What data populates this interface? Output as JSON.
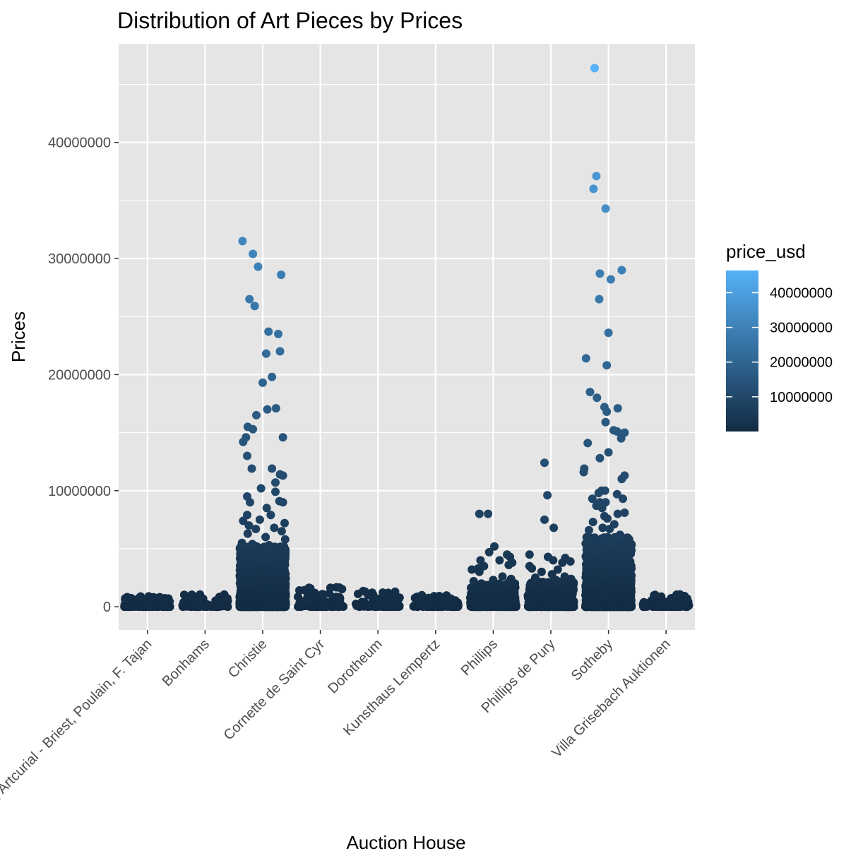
{
  "chart_data": {
    "type": "scatter",
    "title": "Distribution of Art Pieces by Prices",
    "xlabel": "Auction House",
    "ylabel": "Prices",
    "categories": [
      "Binoche et Giquello, Artcurial - Briest, Poulain, F. Tajan",
      "Bonhams",
      "Christie",
      "Cornette de Saint Cyr",
      "Dorotheum",
      "Kunsthaus Lempertz",
      "Phillips",
      "Phillips de Pury",
      "Sotheby",
      "Villa Grisebach Auktionen"
    ],
    "ylim": [
      -2000000,
      48500000
    ],
    "yticks": [
      0,
      10000000,
      20000000,
      30000000,
      40000000
    ],
    "ytick_labels": [
      "0",
      "10000000",
      "20000000",
      "30000000",
      "40000000"
    ],
    "grid": true,
    "jitter": true,
    "color_variable": "price_usd",
    "color_range": [
      0,
      46400000
    ],
    "color_low": "#132b43",
    "color_high": "#56b1f7",
    "panel_color": "#e5e5e5",
    "grid_color": "#ffffff",
    "legend": {
      "title": "price_usd",
      "position": "right",
      "ticks": [
        10000000,
        20000000,
        30000000,
        40000000
      ],
      "tick_labels": [
        "10000000",
        "20000000",
        "30000000",
        "40000000"
      ]
    },
    "points": [
      {
        "category": "Christie",
        "dx": -0.35,
        "y": 31500000
      },
      {
        "category": "Christie",
        "dx": -0.17,
        "y": 30400000
      },
      {
        "category": "Christie",
        "dx": -0.08,
        "y": 29300000
      },
      {
        "category": "Christie",
        "dx": 0.32,
        "y": 28600000
      },
      {
        "category": "Christie",
        "dx": -0.23,
        "y": 26500000
      },
      {
        "category": "Christie",
        "dx": -0.14,
        "y": 25900000
      },
      {
        "category": "Christie",
        "dx": 0.1,
        "y": 23700000
      },
      {
        "category": "Christie",
        "dx": 0.27,
        "y": 23500000
      },
      {
        "category": "Christie",
        "dx": 0.06,
        "y": 21800000
      },
      {
        "category": "Christie",
        "dx": 0.3,
        "y": 22000000
      },
      {
        "category": "Christie",
        "dx": 0.16,
        "y": 19800000
      },
      {
        "category": "Christie",
        "dx": 0.0,
        "y": 19300000
      },
      {
        "category": "Christie",
        "dx": 0.08,
        "y": 17000000
      },
      {
        "category": "Christie",
        "dx": 0.23,
        "y": 17100000
      },
      {
        "category": "Christie",
        "dx": -0.11,
        "y": 16500000
      },
      {
        "category": "Christie",
        "dx": -0.26,
        "y": 15500000
      },
      {
        "category": "Christie",
        "dx": -0.17,
        "y": 15300000
      },
      {
        "category": "Christie",
        "dx": -0.29,
        "y": 14600000
      },
      {
        "category": "Christie",
        "dx": -0.34,
        "y": 14200000
      },
      {
        "category": "Christie",
        "dx": 0.35,
        "y": 14600000
      },
      {
        "category": "Christie",
        "dx": -0.27,
        "y": 13000000
      },
      {
        "category": "Christie",
        "dx": -0.19,
        "y": 11900000
      },
      {
        "category": "Christie",
        "dx": 0.16,
        "y": 11900000
      },
      {
        "category": "Christie",
        "dx": 0.3,
        "y": 11400000
      },
      {
        "category": "Christie",
        "dx": 0.35,
        "y": 11300000
      },
      {
        "category": "Christie",
        "dx": 0.22,
        "y": 10700000
      },
      {
        "category": "Christie",
        "dx": -0.03,
        "y": 10200000
      },
      {
        "category": "Christie",
        "dx": 0.22,
        "y": 9900000
      },
      {
        "category": "Christie",
        "dx": -0.27,
        "y": 9500000
      },
      {
        "category": "Christie",
        "dx": -0.22,
        "y": 9000000
      },
      {
        "category": "Christie",
        "dx": 0.29,
        "y": 9100000
      },
      {
        "category": "Christie",
        "dx": 0.35,
        "y": 9000000
      },
      {
        "category": "Christie",
        "dx": 0.07,
        "y": 8500000
      },
      {
        "category": "Christie",
        "dx": -0.27,
        "y": 7900000
      },
      {
        "category": "Christie",
        "dx": 0.14,
        "y": 7900000
      },
      {
        "category": "Christie",
        "dx": -0.34,
        "y": 7400000
      },
      {
        "category": "Christie",
        "dx": -0.05,
        "y": 7500000
      },
      {
        "category": "Christie",
        "dx": 0.38,
        "y": 7200000
      },
      {
        "category": "Christie",
        "dx": -0.24,
        "y": 7000000
      },
      {
        "category": "Christie",
        "dx": -0.12,
        "y": 6700000
      },
      {
        "category": "Christie",
        "dx": 0.2,
        "y": 6800000
      },
      {
        "category": "Christie",
        "dx": 0.33,
        "y": 6500000
      },
      {
        "category": "Christie",
        "dx": -0.26,
        "y": 6300000
      },
      {
        "category": "Christie",
        "dx": 0.05,
        "y": 6000000
      },
      {
        "category": "Christie",
        "dx": 0.39,
        "y": 5800000
      },
      {
        "category": "Christie",
        "dx": -0.36,
        "y": 5500000
      },
      {
        "category": "Christie",
        "dx": -0.18,
        "y": 5400000
      },
      {
        "category": "Christie",
        "dx": 0.11,
        "y": 5300000
      },
      {
        "category": "Phillips",
        "dx": -0.24,
        "y": 8000000
      },
      {
        "category": "Phillips",
        "dx": -0.09,
        "y": 8000000
      },
      {
        "category": "Phillips",
        "dx": 0.02,
        "y": 5200000
      },
      {
        "category": "Phillips",
        "dx": -0.07,
        "y": 4700000
      },
      {
        "category": "Phillips",
        "dx": 0.24,
        "y": 4500000
      },
      {
        "category": "Phillips",
        "dx": 0.29,
        "y": 4300000
      },
      {
        "category": "Phillips",
        "dx": -0.22,
        "y": 4000000
      },
      {
        "category": "Phillips",
        "dx": 0.11,
        "y": 4000000
      },
      {
        "category": "Phillips",
        "dx": 0.33,
        "y": 3800000
      },
      {
        "category": "Phillips",
        "dx": 0.27,
        "y": 3600000
      },
      {
        "category": "Phillips",
        "dx": -0.16,
        "y": 3500000
      },
      {
        "category": "Phillips",
        "dx": -0.26,
        "y": 3300000
      },
      {
        "category": "Phillips",
        "dx": -0.37,
        "y": 3200000
      },
      {
        "category": "Phillips",
        "dx": -0.24,
        "y": 3000000
      },
      {
        "category": "Phillips",
        "dx": 0.16,
        "y": 2600000
      },
      {
        "category": "Phillips",
        "dx": 0.31,
        "y": 2400000
      },
      {
        "category": "Phillips",
        "dx": 0.0,
        "y": 2300000
      },
      {
        "category": "Phillips",
        "dx": -0.34,
        "y": 2200000
      },
      {
        "category": "Phillips",
        "dx": 0.27,
        "y": 2100000
      },
      {
        "category": "Phillips de Pury",
        "dx": -0.11,
        "y": 12400000
      },
      {
        "category": "Phillips de Pury",
        "dx": -0.06,
        "y": 9600000
      },
      {
        "category": "Phillips de Pury",
        "dx": -0.11,
        "y": 7500000
      },
      {
        "category": "Phillips de Pury",
        "dx": 0.05,
        "y": 6800000
      },
      {
        "category": "Phillips de Pury",
        "dx": -0.37,
        "y": 4500000
      },
      {
        "category": "Phillips de Pury",
        "dx": -0.05,
        "y": 4300000
      },
      {
        "category": "Phillips de Pury",
        "dx": 0.25,
        "y": 4200000
      },
      {
        "category": "Phillips de Pury",
        "dx": 0.04,
        "y": 4000000
      },
      {
        "category": "Phillips de Pury",
        "dx": 0.34,
        "y": 3900000
      },
      {
        "category": "Phillips de Pury",
        "dx": 0.2,
        "y": 3800000
      },
      {
        "category": "Phillips de Pury",
        "dx": -0.37,
        "y": 3500000
      },
      {
        "category": "Phillips de Pury",
        "dx": -0.33,
        "y": 3300000
      },
      {
        "category": "Phillips de Pury",
        "dx": 0.12,
        "y": 3200000
      },
      {
        "category": "Phillips de Pury",
        "dx": -0.16,
        "y": 3000000
      },
      {
        "category": "Phillips de Pury",
        "dx": 0.02,
        "y": 2800000
      },
      {
        "category": "Phillips de Pury",
        "dx": 0.24,
        "y": 2600000
      },
      {
        "category": "Phillips de Pury",
        "dx": -0.27,
        "y": 2500000
      },
      {
        "category": "Phillips de Pury",
        "dx": 0.35,
        "y": 2400000
      },
      {
        "category": "Phillips de Pury",
        "dx": 0.09,
        "y": 2300000
      },
      {
        "category": "Sotheby",
        "dx": -0.24,
        "y": 46400000
      },
      {
        "category": "Sotheby",
        "dx": -0.21,
        "y": 37100000
      },
      {
        "category": "Sotheby",
        "dx": -0.26,
        "y": 36000000
      },
      {
        "category": "Sotheby",
        "dx": -0.05,
        "y": 34300000
      },
      {
        "category": "Sotheby",
        "dx": 0.23,
        "y": 29000000
      },
      {
        "category": "Sotheby",
        "dx": -0.15,
        "y": 28700000
      },
      {
        "category": "Sotheby",
        "dx": 0.04,
        "y": 28200000
      },
      {
        "category": "Sotheby",
        "dx": -0.16,
        "y": 26500000
      },
      {
        "category": "Sotheby",
        "dx": 0.0,
        "y": 23600000
      },
      {
        "category": "Sotheby",
        "dx": -0.39,
        "y": 21400000
      },
      {
        "category": "Sotheby",
        "dx": -0.03,
        "y": 20800000
      },
      {
        "category": "Sotheby",
        "dx": -0.32,
        "y": 18500000
      },
      {
        "category": "Sotheby",
        "dx": -0.2,
        "y": 18000000
      },
      {
        "category": "Sotheby",
        "dx": -0.07,
        "y": 17200000
      },
      {
        "category": "Sotheby",
        "dx": 0.16,
        "y": 17100000
      },
      {
        "category": "Sotheby",
        "dx": -0.03,
        "y": 16800000
      },
      {
        "category": "Sotheby",
        "dx": -0.05,
        "y": 15900000
      },
      {
        "category": "Sotheby",
        "dx": 0.09,
        "y": 15200000
      },
      {
        "category": "Sotheby",
        "dx": 0.15,
        "y": 15100000
      },
      {
        "category": "Sotheby",
        "dx": 0.28,
        "y": 15000000
      },
      {
        "category": "Sotheby",
        "dx": 0.22,
        "y": 14500000
      },
      {
        "category": "Sotheby",
        "dx": -0.36,
        "y": 14100000
      },
      {
        "category": "Sotheby",
        "dx": 0.0,
        "y": 13300000
      },
      {
        "category": "Sotheby",
        "dx": -0.15,
        "y": 12800000
      },
      {
        "category": "Sotheby",
        "dx": -0.42,
        "y": 11900000
      },
      {
        "category": "Sotheby",
        "dx": -0.43,
        "y": 11600000
      },
      {
        "category": "Sotheby",
        "dx": 0.28,
        "y": 11300000
      },
      {
        "category": "Sotheby",
        "dx": 0.23,
        "y": 11000000
      },
      {
        "category": "Sotheby",
        "dx": -0.12,
        "y": 10000000
      },
      {
        "category": "Sotheby",
        "dx": -0.06,
        "y": 10000000
      },
      {
        "category": "Sotheby",
        "dx": -0.17,
        "y": 9800000
      },
      {
        "category": "Sotheby",
        "dx": 0.15,
        "y": 9700000
      },
      {
        "category": "Sotheby",
        "dx": 0.25,
        "y": 9300000
      },
      {
        "category": "Sotheby",
        "dx": -0.28,
        "y": 9300000
      },
      {
        "category": "Sotheby",
        "dx": -0.15,
        "y": 9000000
      },
      {
        "category": "Sotheby",
        "dx": -0.05,
        "y": 9000000
      },
      {
        "category": "Sotheby",
        "dx": -0.21,
        "y": 8700000
      },
      {
        "category": "Sotheby",
        "dx": -0.11,
        "y": 8500000
      },
      {
        "category": "Sotheby",
        "dx": 0.16,
        "y": 8000000
      },
      {
        "category": "Sotheby",
        "dx": 0.28,
        "y": 8100000
      },
      {
        "category": "Sotheby",
        "dx": -0.07,
        "y": 7800000
      },
      {
        "category": "Sotheby",
        "dx": -0.02,
        "y": 7600000
      },
      {
        "category": "Sotheby",
        "dx": -0.27,
        "y": 7300000
      },
      {
        "category": "Sotheby",
        "dx": 0.1,
        "y": 7100000
      },
      {
        "category": "Sotheby",
        "dx": -0.1,
        "y": 6800000
      },
      {
        "category": "Sotheby",
        "dx": 0.02,
        "y": 6700000
      },
      {
        "category": "Sotheby",
        "dx": -0.34,
        "y": 6600000
      },
      {
        "category": "Sotheby",
        "dx": 0.2,
        "y": 6200000
      }
    ],
    "clusters": [
      {
        "category": "Binoche et Giquello, Artcurial - Briest, Poulain, F. Tajan",
        "count": 140,
        "max": 900000
      },
      {
        "category": "Bonhams",
        "count": 90,
        "max": 1050000
      },
      {
        "category": "Christie",
        "count": 1900,
        "max": 5200000
      },
      {
        "category": "Cornette de Saint Cyr",
        "count": 90,
        "max": 1700000
      },
      {
        "category": "Dorotheum",
        "count": 90,
        "max": 1400000
      },
      {
        "category": "Kunsthaus Lempertz",
        "count": 110,
        "max": 1000000
      },
      {
        "category": "Phillips",
        "count": 500,
        "max": 2000000
      },
      {
        "category": "Phillips de Pury",
        "count": 700,
        "max": 2200000
      },
      {
        "category": "Sotheby",
        "count": 1900,
        "max": 6000000
      },
      {
        "category": "Villa Grisebach Auktionen",
        "count": 130,
        "max": 1100000
      }
    ]
  }
}
